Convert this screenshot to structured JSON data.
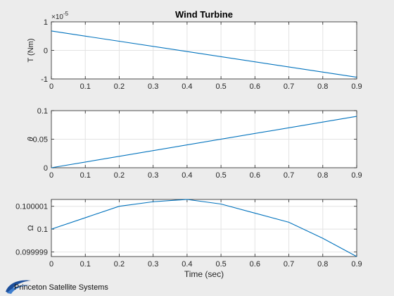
{
  "figure": {
    "title": "Wind Turbine",
    "logo_text": "Princeton Satellite Systems",
    "background": "#ececec",
    "line_color": "#0072bd"
  },
  "chart_data": [
    {
      "type": "line",
      "title": "Wind Turbine",
      "xlabel": "",
      "ylabel": "T (Nm)",
      "exponent_label": "×10",
      "exponent_power": "-5",
      "xlim": [
        0,
        0.9
      ],
      "ylim": [
        -1e-05,
        1e-05
      ],
      "xticks": [
        "0",
        "0.1",
        "0.2",
        "0.3",
        "0.4",
        "0.5",
        "0.6",
        "0.7",
        "0.8",
        "0.9"
      ],
      "yticks": [
        {
          "value": -1e-05,
          "label": "-1"
        },
        {
          "value": 0,
          "label": "0"
        },
        {
          "value": 1e-05,
          "label": "1"
        }
      ],
      "grid": true,
      "series": [
        {
          "x": [
            0,
            0.9
          ],
          "values": [
            6.8e-06,
            -9.4e-06
          ]
        }
      ]
    },
    {
      "type": "line",
      "xlabel": "",
      "ylabel": "θ",
      "xlim": [
        0,
        0.9
      ],
      "ylim": [
        0,
        0.1
      ],
      "xticks": [
        "0",
        "0.1",
        "0.2",
        "0.3",
        "0.4",
        "0.5",
        "0.6",
        "0.7",
        "0.8",
        "0.9"
      ],
      "yticks": [
        {
          "value": 0,
          "label": "0"
        },
        {
          "value": 0.05,
          "label": "0.05"
        },
        {
          "value": 0.1,
          "label": "0.1"
        }
      ],
      "grid": true,
      "series": [
        {
          "x": [
            0,
            0.9
          ],
          "values": [
            0,
            0.09
          ]
        }
      ]
    },
    {
      "type": "line",
      "xlabel": "Time (sec)",
      "ylabel": "Ω",
      "xlim": [
        0,
        0.9
      ],
      "ylim": [
        0.0999988,
        0.1000013
      ],
      "xticks": [
        "0",
        "0.1",
        "0.2",
        "0.3",
        "0.4",
        "0.5",
        "0.6",
        "0.7",
        "0.8",
        "0.9"
      ],
      "yticks": [
        {
          "value": 0.099999,
          "label": "0.099999"
        },
        {
          "value": 0.1,
          "label": "0.1"
        },
        {
          "value": 0.100001,
          "label": "0.100001"
        }
      ],
      "grid": true,
      "series": [
        {
          "x": [
            0,
            0.1,
            0.2,
            0.3,
            0.4,
            0.5,
            0.6,
            0.7,
            0.8,
            0.9
          ],
          "values": [
            0.1,
            0.1000005,
            0.100001,
            0.1000012,
            0.1000013,
            0.1000011,
            0.1000007,
            0.1000003,
            0.0999996,
            0.0999988
          ]
        }
      ]
    }
  ]
}
